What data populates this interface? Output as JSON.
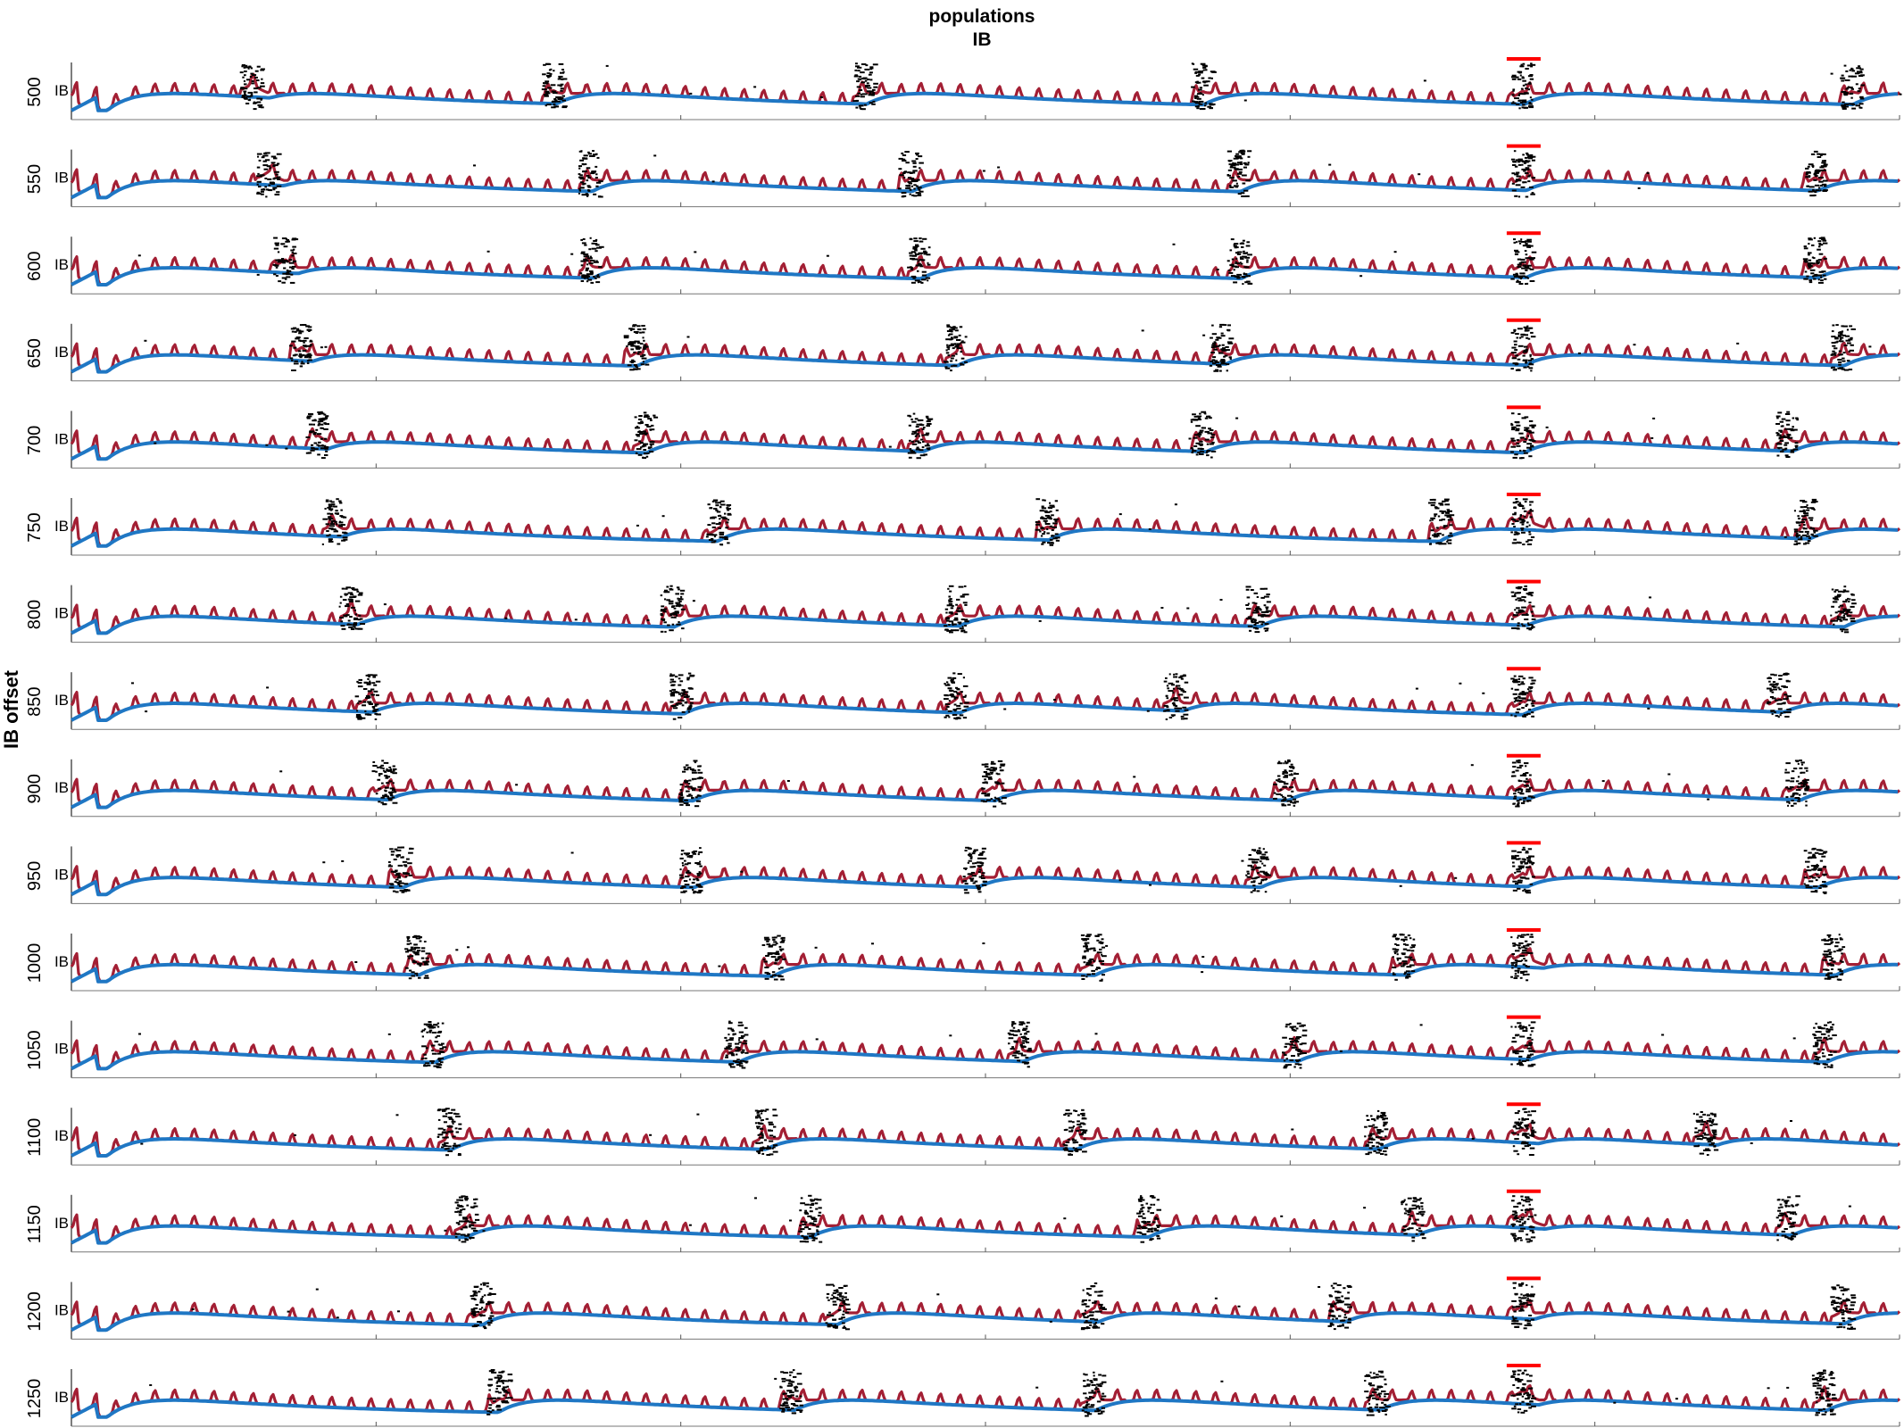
{
  "chart_data": {
    "type": "line",
    "title": [
      "populations",
      "IB"
    ],
    "ylabel": "IB offset",
    "xlabel": "",
    "population_label": "IB",
    "grid": false,
    "colors": {
      "red_trace": "#a31f34",
      "blue_trace": "#1f77c4",
      "raster": "#000000",
      "marker": "#ff0000",
      "axis": "#262626"
    },
    "rows": [
      {
        "offset": "500",
        "burst_positions": [
          0.095,
          0.26,
          0.43,
          0.615,
          0.79,
          0.97
        ]
      },
      {
        "offset": "550",
        "burst_positions": [
          0.104,
          0.28,
          0.455,
          0.635,
          0.79,
          0.95
        ]
      },
      {
        "offset": "600",
        "burst_positions": [
          0.113,
          0.28,
          0.46,
          0.635,
          0.79,
          0.95
        ]
      },
      {
        "offset": "650",
        "burst_positions": [
          0.122,
          0.305,
          0.48,
          0.625,
          0.79,
          0.965
        ]
      },
      {
        "offset": "700",
        "burst_positions": [
          0.131,
          0.31,
          0.46,
          0.615,
          0.79,
          0.935
        ]
      },
      {
        "offset": "750",
        "burst_positions": [
          0.14,
          0.35,
          0.53,
          0.745,
          0.79,
          0.945
        ]
      },
      {
        "offset": "800",
        "burst_positions": [
          0.149,
          0.325,
          0.48,
          0.645,
          0.79,
          0.965
        ]
      },
      {
        "offset": "850",
        "burst_positions": [
          0.158,
          0.33,
          0.48,
          0.6,
          0.79,
          0.93
        ]
      },
      {
        "offset": "900",
        "burst_positions": [
          0.167,
          0.335,
          0.5,
          0.66,
          0.79,
          0.94
        ]
      },
      {
        "offset": "950",
        "burst_positions": [
          0.176,
          0.335,
          0.49,
          0.645,
          0.79,
          0.95
        ]
      },
      {
        "offset": "1000",
        "burst_positions": [
          0.185,
          0.38,
          0.555,
          0.725,
          0.79,
          0.96
        ]
      },
      {
        "offset": "1050",
        "burst_positions": [
          0.194,
          0.36,
          0.515,
          0.665,
          0.79,
          0.955
        ]
      },
      {
        "offset": "1100",
        "burst_positions": [
          0.203,
          0.375,
          0.545,
          0.71,
          0.79,
          0.89
        ]
      },
      {
        "offset": "1150",
        "burst_positions": [
          0.212,
          0.4,
          0.585,
          0.73,
          0.79,
          0.935
        ]
      },
      {
        "offset": "1200",
        "burst_positions": [
          0.221,
          0.415,
          0.555,
          0.69,
          0.79,
          0.965
        ]
      },
      {
        "offset": "1250",
        "burst_positions": [
          0.23,
          0.39,
          0.555,
          0.71,
          0.79,
          0.955
        ]
      }
    ]
  }
}
